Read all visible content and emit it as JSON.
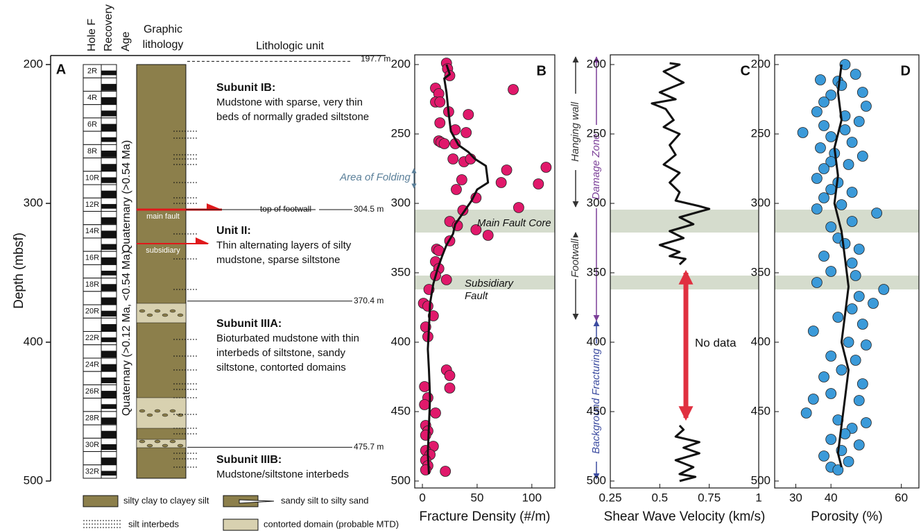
{
  "lithology": {
    "letter": "A",
    "y_label": "Depth (mbsf)",
    "ylim": [
      193,
      505
    ],
    "yticks": [
      200,
      300,
      400,
      500
    ],
    "headers": [
      "Hole F",
      "Recovery",
      "Age",
      "Graphic lithology",
      "Lithologic unit"
    ],
    "cores": [
      "2R",
      "4R",
      "6R",
      "8R",
      "10R",
      "12R",
      "14R",
      "16R",
      "18R",
      "20R",
      "22R",
      "24R",
      "26R",
      "28R",
      "30R",
      "32R"
    ],
    "ages": [
      "Quaternary (>0.54 Ma)",
      "Quaternary (>0.12 Ma, <0.54 Ma)"
    ],
    "boundaries": [
      {
        "value": 197.7,
        "label": "197.7 m"
      },
      {
        "value": 304.5,
        "label": "304.5 m"
      },
      {
        "value": 370.4,
        "label": "370.4 m"
      },
      {
        "value": 475.7,
        "label": "475.7 m"
      }
    ],
    "footwall_label": "top of footwall",
    "faults": [
      "main fault",
      "subsidiary"
    ],
    "units": [
      {
        "name": "Subunit IB:",
        "lines": [
          "Mudstone with sparse, very thin",
          "beds of normally graded siltstone"
        ]
      },
      {
        "name": "Unit II:",
        "lines": [
          "Thin alternating layers of silty",
          "mudstone, sparse siltstone"
        ]
      },
      {
        "name": "Subunit IIIA:",
        "lines": [
          "Bioturbated mudstone with thin",
          "interbeds of siltstone,  sandy",
          "siltstone, contorted domains"
        ]
      },
      {
        "name": "Subunit IIIB:",
        "lines": [
          "Mudstone/siltstone interbeds"
        ]
      }
    ],
    "legend": [
      "silty clay to clayey silt",
      "sandy silt to silty sand",
      "silt interbeds",
      "contorted domain (probable MTD)"
    ]
  },
  "zones": {
    "hanging_wall": "Hanging wall",
    "footwall": "Footwall",
    "damage": "Damage Zone",
    "background": "Background Fracturing"
  },
  "chart_data": [
    {
      "type": "scatter",
      "title": "B",
      "x_label": "Fracture Density (#/m)",
      "xlim": [
        -7,
        121
      ],
      "xticks": [
        0,
        50,
        100
      ],
      "ylim": [
        193,
        505
      ],
      "yticks": [
        200,
        250,
        300,
        350,
        400,
        450,
        500
      ],
      "bands": [
        [
          304.5,
          321
        ],
        [
          352,
          362
        ]
      ],
      "band_color": "#d5dccd",
      "annotations": [
        {
          "lines": [
            "Area of Folding"
          ],
          "color": "#5a7f99"
        },
        {
          "lines": [
            "Main Fault Core"
          ],
          "color": "#111"
        },
        {
          "lines": [
            "Subsidiary",
            "Fault"
          ],
          "color": "#111"
        }
      ],
      "series": [
        {
          "mode": "markers",
          "color": "#e0196b",
          "x": [
            22,
            23,
            25,
            12,
            83,
            15,
            12,
            16,
            24,
            42,
            16,
            30,
            40,
            15,
            17,
            20,
            30,
            28,
            38,
            44,
            113,
            77,
            36,
            72,
            106,
            31,
            49,
            88,
            37,
            25,
            32,
            49,
            60,
            25,
            13,
            15,
            12,
            15,
            12,
            22,
            6,
            1,
            5,
            10,
            3,
            5,
            22,
            25,
            25,
            2,
            5,
            2,
            12,
            3,
            5,
            3,
            10,
            3,
            7,
            3,
            5,
            3,
            21
          ],
          "y": [
            199,
            203,
            208,
            217,
            218,
            221,
            227,
            227,
            234,
            236,
            242,
            247,
            249,
            255,
            256,
            257,
            257,
            268,
            270,
            268,
            274,
            276,
            283,
            285,
            286,
            290,
            296,
            303,
            305,
            313,
            316,
            319,
            323,
            327,
            333,
            334,
            342,
            347,
            352,
            355,
            362,
            372,
            374,
            381,
            389,
            396,
            420,
            424,
            433,
            432,
            440,
            445,
            451,
            460,
            464,
            467,
            475,
            478,
            481,
            485,
            489,
            492,
            493
          ]
        },
        {
          "mode": "lines",
          "color": "#111",
          "x": [
            22,
            25,
            20,
            22,
            24,
            26,
            33,
            42,
            48,
            58,
            60,
            50,
            45,
            38,
            30,
            28,
            22,
            18,
            14,
            10,
            7,
            6,
            5,
            6,
            7,
            6,
            5,
            6
          ],
          "y": [
            200,
            207,
            210,
            220,
            235,
            248,
            258,
            263,
            268,
            273,
            285,
            290,
            298,
            306,
            315,
            322,
            330,
            338,
            347,
            358,
            372,
            390,
            405,
            420,
            440,
            460,
            480,
            495
          ]
        }
      ]
    },
    {
      "type": "scatter",
      "title": "C",
      "x_label": "Shear Wave Velocity (km/s)",
      "xlim": [
        0.25,
        1
      ],
      "xticks": [
        0.25,
        0.5,
        0.75,
        1
      ],
      "ylim": [
        193,
        505
      ],
      "yticks": [
        200,
        250,
        300,
        350,
        400,
        450,
        500
      ],
      "bands": [
        [
          304.5,
          321
        ],
        [
          352,
          362
        ]
      ],
      "band_color": "#d5dccd",
      "annotations": [
        {
          "lines": [
            "No data"
          ],
          "color": "#111"
        }
      ],
      "series": [
        {
          "mode": "lines",
          "color": "#111",
          "x": [
            0.55,
            0.6,
            0.52,
            0.58,
            0.62,
            0.5,
            0.58,
            0.46,
            0.53,
            0.57,
            0.52,
            0.6,
            0.55,
            0.58,
            0.52,
            0.6,
            0.55,
            0.6,
            0.58,
            0.7,
            0.75,
            0.6,
            0.67,
            0.55,
            0.62,
            0.5,
            0.6,
            0.55,
            0.63,
            0.6,
            null,
            0.6,
            0.62,
            0.58,
            0.7,
            0.62,
            0.7,
            0.58,
            0.67,
            0.6,
            0.68,
            0.6
          ],
          "y": [
            199,
            200,
            205,
            210,
            213,
            220,
            225,
            228,
            232,
            240,
            245,
            250,
            258,
            265,
            272,
            278,
            285,
            292,
            298,
            302,
            304,
            310,
            315,
            320,
            325,
            330,
            335,
            338,
            340,
            344,
            null,
            460,
            463,
            468,
            472,
            476,
            480,
            485,
            490,
            495,
            497,
            500
          ]
        }
      ]
    },
    {
      "type": "scatter",
      "title": "D",
      "x_label": "Porosity (%)",
      "xlim": [
        24,
        65
      ],
      "xticks": [
        30,
        40,
        60
      ],
      "ylim": [
        193,
        505
      ],
      "yticks": [
        200,
        250,
        300,
        350,
        400,
        450,
        500
      ],
      "bands": [
        [
          304.5,
          321
        ],
        [
          352,
          362
        ]
      ],
      "band_color": "#d5dccd",
      "annotations": [],
      "series": [
        {
          "mode": "markers",
          "color": "#3b9ad9",
          "x": [
            44,
            47,
            37,
            42,
            43,
            49,
            40,
            38,
            50,
            36,
            44,
            48,
            38,
            32,
            44,
            40,
            46,
            37,
            41,
            49,
            40,
            38,
            45,
            36,
            42,
            40,
            46,
            38,
            43,
            36,
            53,
            46,
            40,
            42,
            44,
            48,
            38,
            46,
            40,
            47,
            36,
            55,
            48,
            52,
            46,
            42,
            49,
            35,
            45,
            50,
            40,
            47,
            43,
            38,
            49,
            40,
            35,
            48,
            33,
            42,
            50,
            46,
            44,
            40,
            48,
            43,
            38,
            45,
            40,
            42
          ],
          "y": [
            200,
            207,
            211,
            212,
            215,
            220,
            222,
            227,
            230,
            234,
            237,
            241,
            244,
            249,
            247,
            252,
            256,
            260,
            264,
            266,
            270,
            275,
            272,
            282,
            285,
            290,
            292,
            296,
            301,
            304,
            307,
            313,
            317,
            325,
            329,
            333,
            338,
            343,
            349,
            352,
            357,
            362,
            367,
            372,
            376,
            382,
            387,
            392,
            400,
            402,
            410,
            413,
            420,
            425,
            430,
            437,
            441,
            442,
            451,
            456,
            458,
            462,
            466,
            470,
            474,
            478,
            482,
            486,
            490,
            492
          ]
        },
        {
          "mode": "lines",
          "color": "#111",
          "x": [
            43,
            42,
            43,
            41,
            42,
            41,
            43,
            44,
            45,
            44,
            43,
            45,
            44,
            43,
            42,
            43
          ],
          "y": [
            200,
            220,
            240,
            260,
            280,
            300,
            320,
            340,
            360,
            380,
            400,
            420,
            440,
            460,
            480,
            490
          ]
        }
      ]
    }
  ]
}
